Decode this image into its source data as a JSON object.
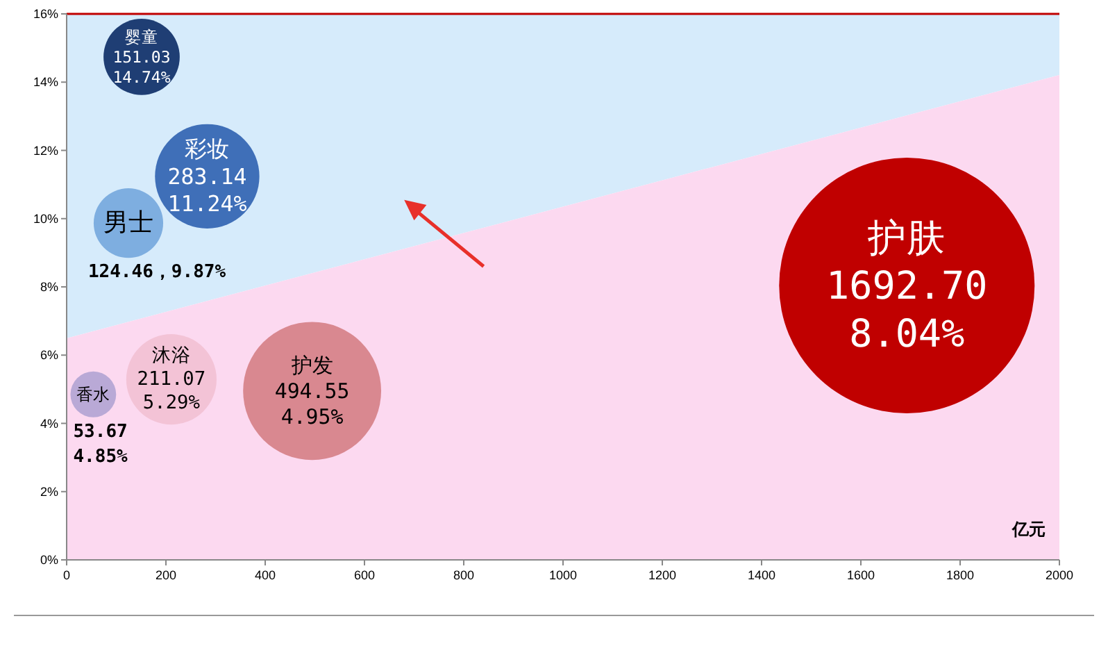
{
  "chart_data": {
    "type": "bubble",
    "xlabel": "亿元",
    "series": [
      {
        "name": "婴童",
        "color": "#1f3e74",
        "x": [
          151.03
        ],
        "values": [
          14.74
        ],
        "sizes": [
          0.089
        ],
        "value_labels": [
          "151.03\n14.74%"
        ]
      },
      {
        "name": "彩妆",
        "color": "#3f6fb8",
        "x": [
          283.14
        ],
        "values": [
          11.24
        ],
        "sizes": [
          0.167
        ],
        "value_labels": [
          "283.14\n11.24%"
        ]
      },
      {
        "name": "男士",
        "color": "#7eaee0",
        "x": [
          124.46
        ],
        "values": [
          9.87
        ],
        "sizes": [
          0.074
        ],
        "value_labels": [
          "124.46，9.87%"
        ]
      },
      {
        "name": "护肤",
        "color": "#c00000",
        "x": [
          1692.7
        ],
        "values": [
          8.04
        ],
        "sizes": [
          1
        ],
        "value_labels": [
          "1692.70\n8.04%"
        ]
      },
      {
        "name": "护发",
        "color": "#d98890",
        "x": [
          494.55
        ],
        "values": [
          4.95
        ],
        "sizes": [
          0.292
        ],
        "value_labels": [
          "494.55\n4.95%"
        ]
      },
      {
        "name": "沐浴",
        "color": "#f3c3d6",
        "x": [
          211.07
        ],
        "values": [
          5.29
        ],
        "sizes": [
          0.125
        ],
        "value_labels": [
          "211.07\n5.29%"
        ]
      },
      {
        "name": "香水",
        "color": "#b9a9d6",
        "x": [
          53.67
        ],
        "values": [
          4.85
        ],
        "sizes": [
          0.032
        ],
        "value_labels": [
          "53.67\n4.85%"
        ]
      }
    ],
    "xlim": [
      0,
      2000
    ],
    "xticks": [
      0,
      200,
      400,
      600,
      800,
      1000,
      1200,
      1400,
      1600,
      1800,
      2000
    ],
    "ylim": [
      0,
      16
    ],
    "yticks": [
      {
        "value": 0,
        "label": "0%"
      },
      {
        "value": 2,
        "label": "2%"
      },
      {
        "value": 4,
        "label": "4%"
      },
      {
        "value": 6,
        "label": "6%"
      },
      {
        "value": 8,
        "label": "8%"
      },
      {
        "value": 10,
        "label": "10%"
      },
      {
        "value": 12,
        "label": "12%"
      },
      {
        "value": 14,
        "label": "14%"
      },
      {
        "value": 16,
        "label": "16%"
      }
    ],
    "grid": false
  }
}
